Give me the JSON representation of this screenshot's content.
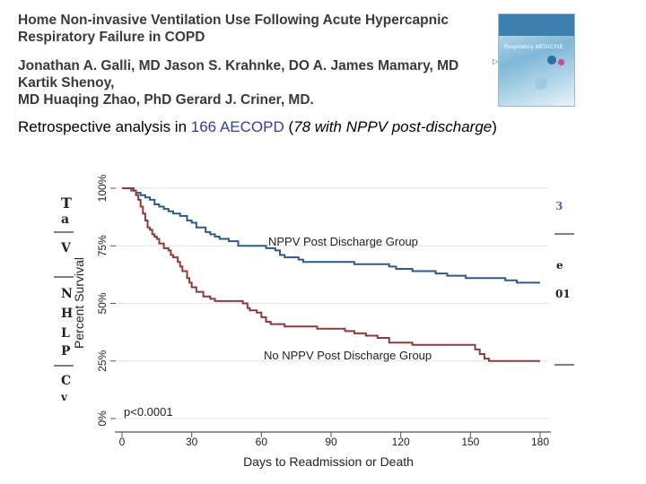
{
  "header": {
    "title": "Home Non-invasive Ventilation Use Following Acute Hypercapnic Respiratory Failure in COPD",
    "authors_line1": "Jonathan A. Galli, MD Jason S. Krahnke, DO A. James Mamary, MD Kartik Shenoy,",
    "authors_line2": "MD Huaqing Zhao, PhD Gerard J. Criner, MD.",
    "journal_cover_label": "Respiratory MEDICINE"
  },
  "subtitle": {
    "prefix": "Retrospective analysis in ",
    "count": "166",
    "space": " ",
    "group": "AECOPD",
    "open": " (",
    "detail": "78 with NPPV post-discharge",
    "close": ")"
  },
  "chart_data": {
    "type": "line",
    "subtype": "kaplan-meier-step",
    "title": "",
    "xlabel": "Days to Readmission or Death",
    "ylabel": "Percent Survival",
    "xlim": [
      0,
      180
    ],
    "ylim": [
      0,
      100
    ],
    "x_ticks": [
      0,
      30,
      60,
      90,
      120,
      150,
      180
    ],
    "x_tick_labels": [
      "0",
      "30",
      "60",
      "90",
      "120",
      "150",
      "180"
    ],
    "y_ticks": [
      0,
      25,
      50,
      75,
      100
    ],
    "y_tick_labels": [
      "0%",
      "25%",
      "50%",
      "75%",
      "100%"
    ],
    "grid": true,
    "annotation": "p<0.0001",
    "series": [
      {
        "name": "NPPV Post Discharge Group",
        "color": "#2d5a8c",
        "x": [
          0,
          4,
          6,
          8,
          10,
          12,
          14,
          16,
          18,
          20,
          22,
          25,
          28,
          30,
          32,
          36,
          38,
          40,
          42,
          46,
          50,
          58,
          62,
          66,
          68,
          70,
          76,
          78,
          90,
          100,
          110,
          115,
          118,
          125,
          130,
          135,
          140,
          145,
          148,
          155,
          165,
          170,
          175,
          180
        ],
        "y": [
          100,
          99,
          98,
          97,
          96,
          95,
          93,
          92,
          91,
          90,
          89,
          88,
          86,
          85,
          83,
          81,
          80,
          79,
          78,
          77,
          75,
          75,
          74,
          73,
          71,
          70,
          69,
          68,
          68,
          67,
          67,
          66,
          65,
          64,
          64,
          63,
          62,
          62,
          61,
          61,
          60,
          59,
          59,
          59
        ]
      },
      {
        "name": "No NPPV Post Discharge Group",
        "color": "#8e3a3a",
        "x": [
          0,
          5,
          6,
          7,
          8,
          9,
          10,
          11,
          12,
          13,
          14,
          15,
          16,
          18,
          20,
          21,
          22,
          24,
          25,
          26,
          28,
          29,
          30,
          32,
          35,
          38,
          40,
          50,
          52,
          54,
          55,
          58,
          60,
          62,
          64,
          70,
          75,
          84,
          90,
          96,
          100,
          105,
          110,
          115,
          125,
          130,
          150,
          152,
          154,
          156,
          158,
          180
        ],
        "y": [
          100,
          99,
          97,
          95,
          92,
          89,
          86,
          83,
          82,
          80,
          79,
          78,
          76,
          74,
          73,
          71,
          70,
          68,
          66,
          64,
          61,
          59,
          57,
          55,
          53,
          52,
          51,
          51,
          50,
          48,
          47,
          46,
          44,
          42,
          41,
          40,
          40,
          39,
          39,
          38,
          37,
          36,
          35,
          33,
          32,
          32,
          32,
          30,
          28,
          26,
          25,
          25
        ]
      }
    ]
  }
}
